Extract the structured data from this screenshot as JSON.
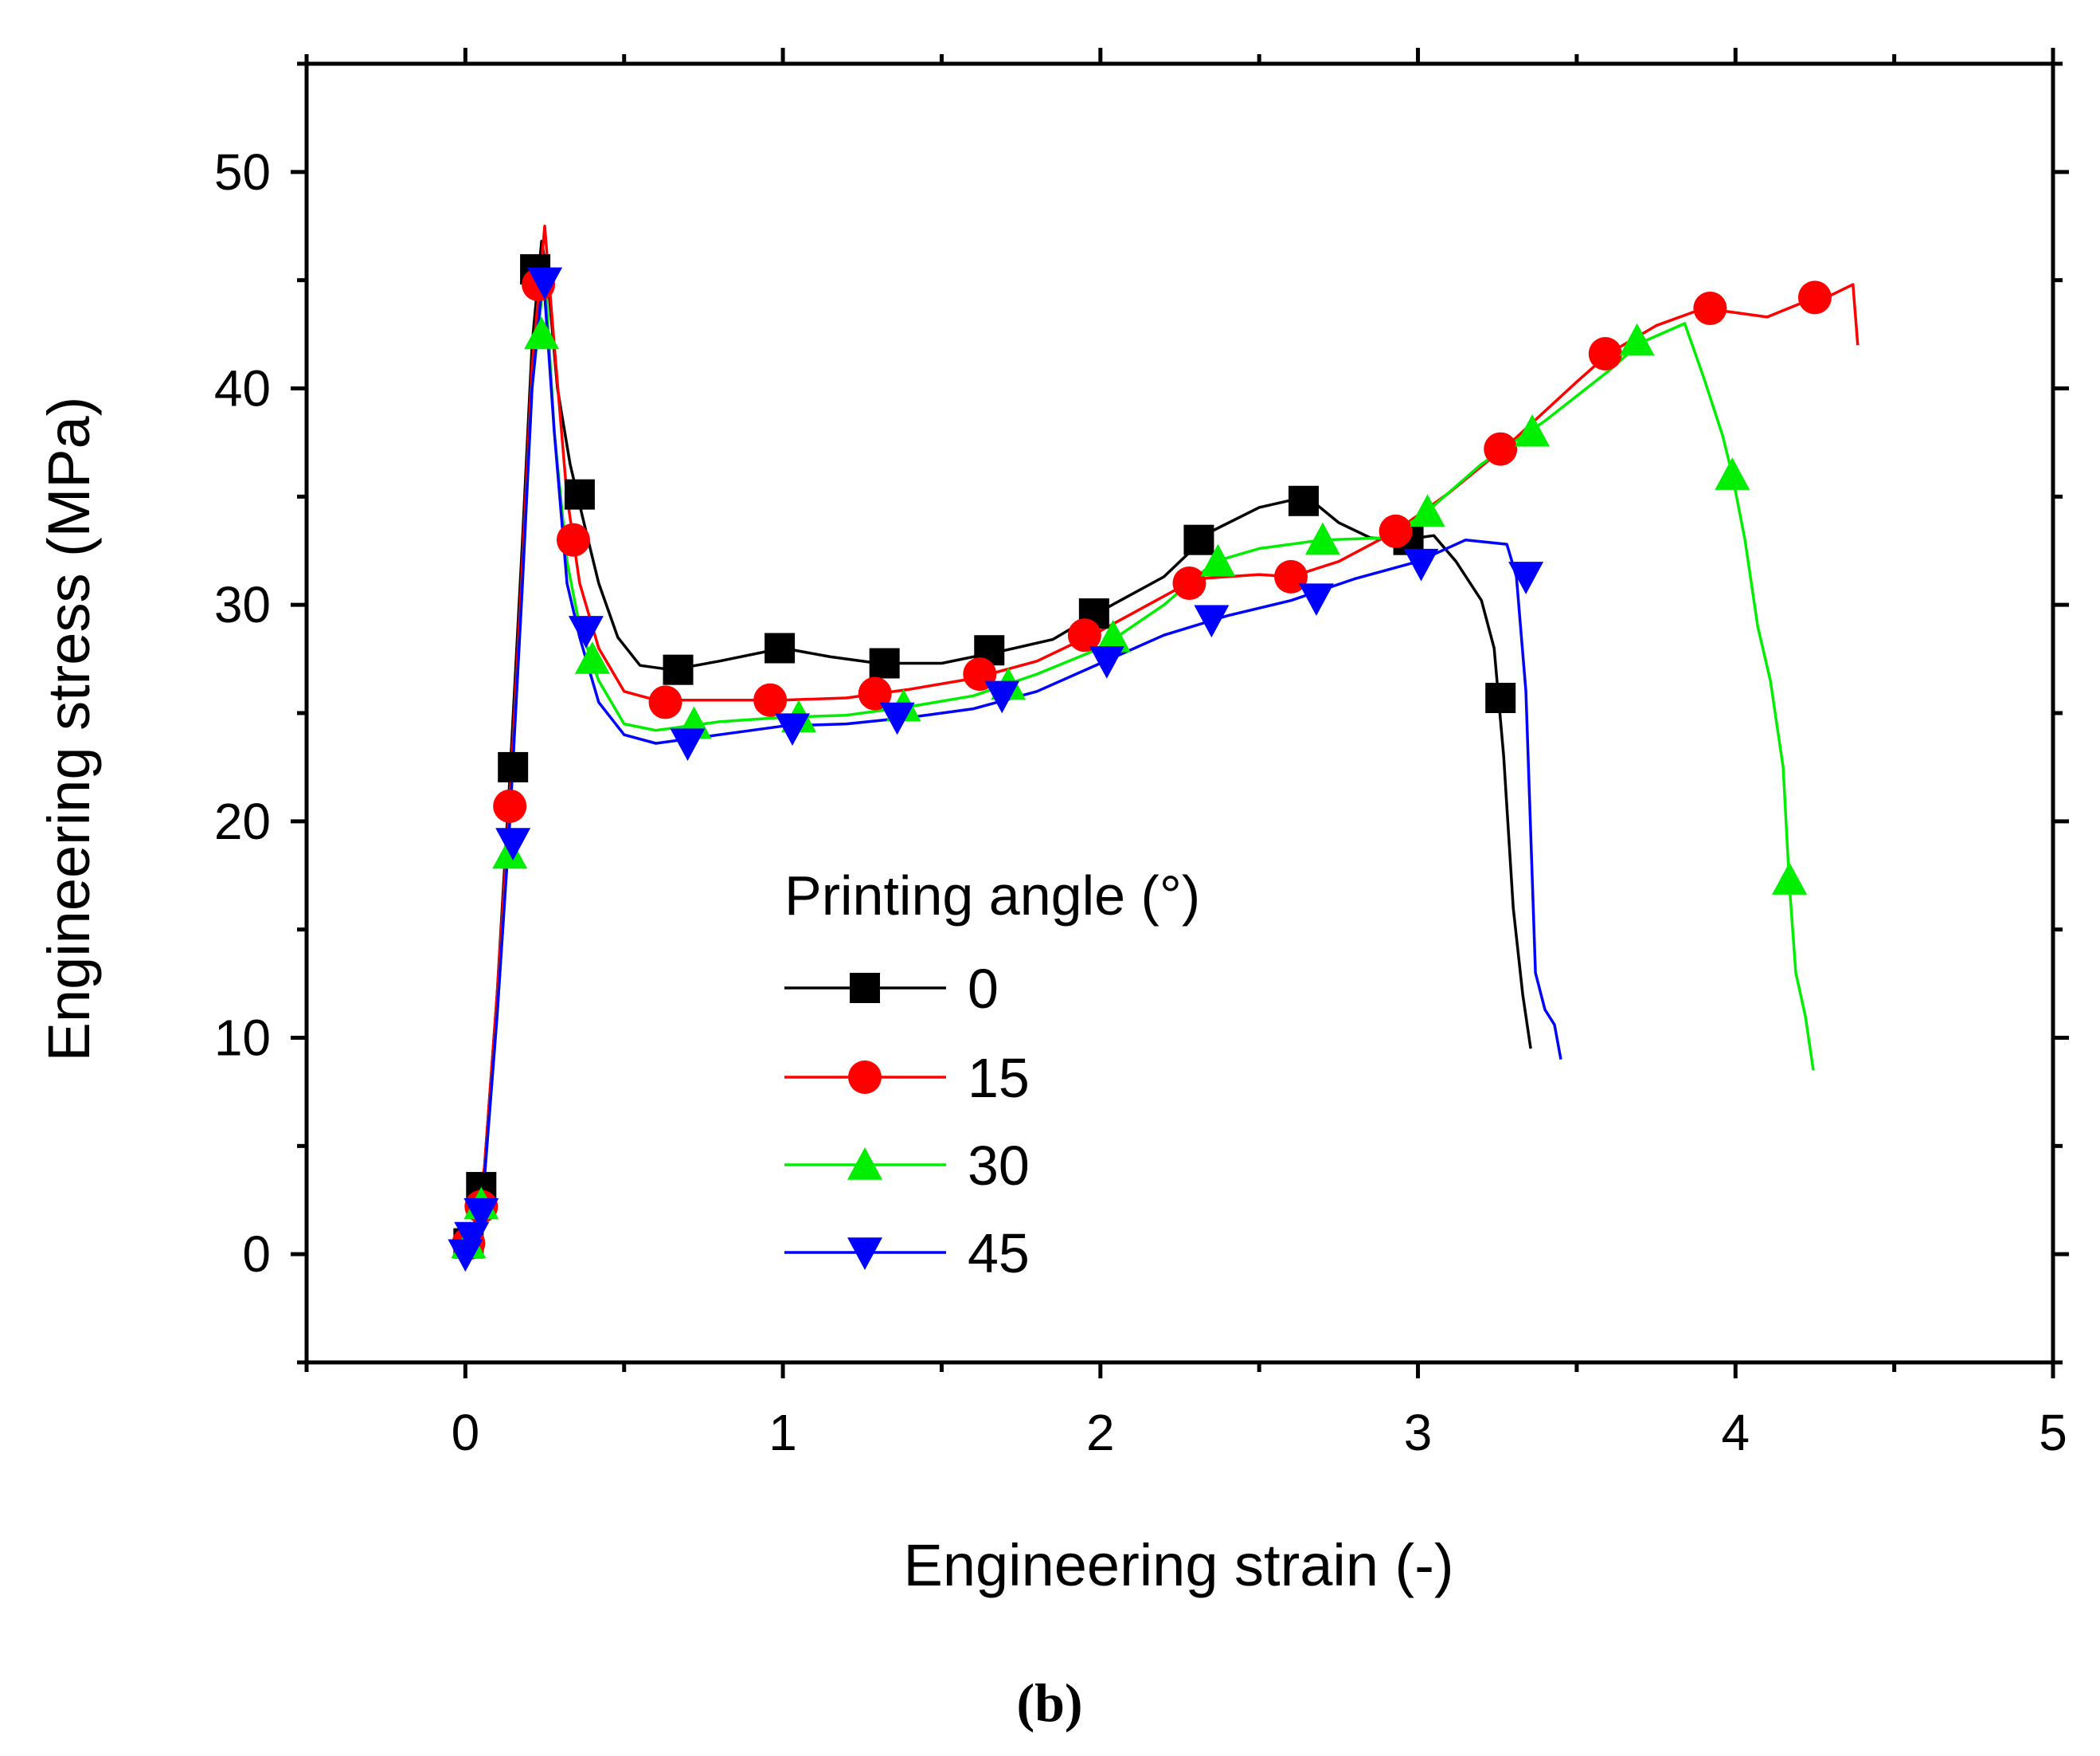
{
  "chart_data": {
    "type": "line",
    "xlabel": "Engineering strain (-)",
    "ylabel": "Engineering stress (MPa)",
    "caption": "(b)",
    "xlim": [
      -0.5,
      5
    ],
    "ylim": [
      -5,
      55
    ],
    "xticks": [
      0,
      1,
      2,
      3,
      4,
      5
    ],
    "xtick_labels": [
      "0",
      "1",
      "2",
      "3",
      "4",
      "5"
    ],
    "yticks": [
      0,
      10,
      20,
      30,
      40,
      50
    ],
    "ytick_labels": [
      "0",
      "10",
      "20",
      "30",
      "40",
      "50"
    ],
    "grid": false,
    "legend": {
      "title": "Printing angle (°)",
      "position": "center"
    },
    "series": [
      {
        "name": "0",
        "color": "#000000",
        "marker": "square",
        "line": [
          [
            0,
            0
          ],
          [
            0.03,
            1.5
          ],
          [
            0.06,
            4
          ],
          [
            0.1,
            12
          ],
          [
            0.14,
            22
          ],
          [
            0.18,
            33
          ],
          [
            0.21,
            42
          ],
          [
            0.24,
            46.8
          ],
          [
            0.26,
            45
          ],
          [
            0.29,
            40
          ],
          [
            0.33,
            36.5
          ],
          [
            0.37,
            34
          ],
          [
            0.42,
            31
          ],
          [
            0.48,
            28.5
          ],
          [
            0.55,
            27.2
          ],
          [
            0.65,
            27
          ],
          [
            0.8,
            27.4
          ],
          [
            1.0,
            28
          ],
          [
            1.15,
            27.6
          ],
          [
            1.3,
            27.3
          ],
          [
            1.5,
            27.3
          ],
          [
            1.7,
            27.9
          ],
          [
            1.85,
            28.4
          ],
          [
            2.0,
            29.7
          ],
          [
            2.2,
            31.3
          ],
          [
            2.35,
            33.4
          ],
          [
            2.5,
            34.5
          ],
          [
            2.65,
            35
          ],
          [
            2.75,
            33.8
          ],
          [
            2.85,
            33.1
          ],
          [
            2.95,
            33
          ],
          [
            3.05,
            33.2
          ],
          [
            3.12,
            32
          ],
          [
            3.2,
            30.2
          ],
          [
            3.24,
            28
          ],
          [
            3.27,
            23
          ],
          [
            3.3,
            16
          ],
          [
            3.33,
            12
          ],
          [
            3.355,
            9.5
          ]
        ],
        "markers": [
          [
            0.01,
            0.5
          ],
          [
            0.05,
            3.1
          ],
          [
            0.15,
            22.5
          ],
          [
            0.22,
            45.5
          ],
          [
            0.36,
            35.1
          ],
          [
            0.67,
            27
          ],
          [
            0.99,
            28
          ],
          [
            1.32,
            27.3
          ],
          [
            1.65,
            27.9
          ],
          [
            1.98,
            29.6
          ],
          [
            2.31,
            33
          ],
          [
            2.64,
            34.8
          ],
          [
            2.97,
            33
          ],
          [
            3.26,
            25.7
          ]
        ]
      },
      {
        "name": "15",
        "color": "#ff0000",
        "marker": "circle",
        "line": [
          [
            0,
            0
          ],
          [
            0.03,
            1.3
          ],
          [
            0.06,
            4
          ],
          [
            0.1,
            12
          ],
          [
            0.14,
            21
          ],
          [
            0.18,
            32
          ],
          [
            0.21,
            41
          ],
          [
            0.25,
            47.5
          ],
          [
            0.28,
            42
          ],
          [
            0.32,
            35
          ],
          [
            0.36,
            31
          ],
          [
            0.42,
            28
          ],
          [
            0.5,
            26
          ],
          [
            0.6,
            25.6
          ],
          [
            0.8,
            25.6
          ],
          [
            1.0,
            25.6
          ],
          [
            1.2,
            25.7
          ],
          [
            1.4,
            26.1
          ],
          [
            1.6,
            26.6
          ],
          [
            1.8,
            27.4
          ],
          [
            2.0,
            28.8
          ],
          [
            2.15,
            30
          ],
          [
            2.3,
            31.2
          ],
          [
            2.5,
            31.4
          ],
          [
            2.6,
            31.3
          ],
          [
            2.75,
            32
          ],
          [
            2.93,
            33.4
          ],
          [
            3.1,
            35.2
          ],
          [
            3.3,
            37.6
          ],
          [
            3.5,
            40.3
          ],
          [
            3.6,
            41.6
          ],
          [
            3.75,
            42.9
          ],
          [
            3.9,
            43.7
          ],
          [
            4.0,
            43.5
          ],
          [
            4.1,
            43.3
          ],
          [
            4.2,
            43.9
          ],
          [
            4.3,
            44.3
          ],
          [
            4.37,
            44.8
          ],
          [
            4.385,
            42
          ]
        ],
        "markers": [
          [
            0.01,
            0.5
          ],
          [
            0.05,
            2.2
          ],
          [
            0.14,
            20.7
          ],
          [
            0.23,
            44.8
          ],
          [
            0.34,
            33
          ],
          [
            0.63,
            25.5
          ],
          [
            0.96,
            25.6
          ],
          [
            1.29,
            25.9
          ],
          [
            1.62,
            26.8
          ],
          [
            1.95,
            28.6
          ],
          [
            2.28,
            31
          ],
          [
            2.6,
            31.3
          ],
          [
            2.93,
            33.4
          ],
          [
            3.26,
            37.2
          ],
          [
            3.59,
            41.6
          ],
          [
            3.92,
            43.7
          ],
          [
            4.25,
            44.2
          ]
        ]
      },
      {
        "name": "30",
        "color": "#00ee00",
        "marker": "triangle-up",
        "line": [
          [
            0,
            0
          ],
          [
            0.03,
            1.2
          ],
          [
            0.06,
            3.5
          ],
          [
            0.1,
            11
          ],
          [
            0.14,
            20
          ],
          [
            0.18,
            31
          ],
          [
            0.21,
            40
          ],
          [
            0.25,
            45.5
          ],
          [
            0.28,
            38
          ],
          [
            0.32,
            32
          ],
          [
            0.36,
            29
          ],
          [
            0.42,
            26.5
          ],
          [
            0.5,
            24.5
          ],
          [
            0.6,
            24.2
          ],
          [
            0.8,
            24.6
          ],
          [
            1.0,
            24.8
          ],
          [
            1.2,
            24.9
          ],
          [
            1.4,
            25.3
          ],
          [
            1.6,
            25.8
          ],
          [
            1.8,
            26.8
          ],
          [
            2.0,
            28
          ],
          [
            2.2,
            30
          ],
          [
            2.36,
            32
          ],
          [
            2.5,
            32.6
          ],
          [
            2.7,
            33
          ],
          [
            2.9,
            33.1
          ],
          [
            3.02,
            34.2
          ],
          [
            3.2,
            36.5
          ],
          [
            3.4,
            38.5
          ],
          [
            3.6,
            40.8
          ],
          [
            3.7,
            42.1
          ],
          [
            3.84,
            43
          ],
          [
            3.9,
            40.5
          ],
          [
            3.96,
            37.8
          ],
          [
            3.99,
            36
          ],
          [
            4.03,
            33
          ],
          [
            4.07,
            29
          ],
          [
            4.11,
            26.5
          ],
          [
            4.15,
            22.5
          ],
          [
            4.17,
            17
          ],
          [
            4.19,
            13
          ],
          [
            4.22,
            11
          ],
          [
            4.245,
            8.5
          ]
        ],
        "markers": [
          [
            0.01,
            0.5
          ],
          [
            0.05,
            2.3
          ],
          [
            0.14,
            18.5
          ],
          [
            0.24,
            42.5
          ],
          [
            0.4,
            27.5
          ],
          [
            0.72,
            24.5
          ],
          [
            1.05,
            24.8
          ],
          [
            1.38,
            25.3
          ],
          [
            1.71,
            26.3
          ],
          [
            2.04,
            28.5
          ],
          [
            2.37,
            32
          ],
          [
            2.7,
            33
          ],
          [
            3.03,
            34.3
          ],
          [
            3.36,
            38
          ],
          [
            3.69,
            42.2
          ],
          [
            3.99,
            36
          ],
          [
            4.17,
            17.3
          ]
        ]
      },
      {
        "name": "45",
        "color": "#0000ff",
        "marker": "triangle-down",
        "line": [
          [
            0,
            0
          ],
          [
            0.03,
            1.2
          ],
          [
            0.06,
            3.5
          ],
          [
            0.1,
            11
          ],
          [
            0.14,
            20
          ],
          [
            0.18,
            31
          ],
          [
            0.21,
            40
          ],
          [
            0.245,
            45.3
          ],
          [
            0.28,
            38
          ],
          [
            0.32,
            31
          ],
          [
            0.36,
            28.5
          ],
          [
            0.42,
            25.5
          ],
          [
            0.5,
            24
          ],
          [
            0.6,
            23.6
          ],
          [
            0.8,
            24
          ],
          [
            1.0,
            24.4
          ],
          [
            1.2,
            24.5
          ],
          [
            1.4,
            24.8
          ],
          [
            1.6,
            25.2
          ],
          [
            1.8,
            26
          ],
          [
            2.0,
            27.3
          ],
          [
            2.2,
            28.6
          ],
          [
            2.4,
            29.5
          ],
          [
            2.6,
            30.2
          ],
          [
            2.8,
            31.2
          ],
          [
            3.0,
            32
          ],
          [
            3.15,
            33
          ],
          [
            3.28,
            32.8
          ],
          [
            3.31,
            31.3
          ],
          [
            3.34,
            26
          ],
          [
            3.37,
            13
          ],
          [
            3.4,
            11.3
          ],
          [
            3.43,
            10.6
          ],
          [
            3.45,
            9
          ]
        ],
        "markers": [
          [
            0,
            0
          ],
          [
            0.02,
            0.8
          ],
          [
            0.05,
            1.9
          ],
          [
            0.15,
            19
          ],
          [
            0.25,
            44.9
          ],
          [
            0.38,
            28.8
          ],
          [
            0.7,
            23.6
          ],
          [
            1.03,
            24.3
          ],
          [
            1.36,
            24.8
          ],
          [
            1.69,
            25.8
          ],
          [
            2.02,
            27.4
          ],
          [
            2.35,
            29.3
          ],
          [
            2.68,
            30.3
          ],
          [
            3.01,
            31.9
          ],
          [
            3.34,
            31.3
          ]
        ]
      }
    ]
  }
}
